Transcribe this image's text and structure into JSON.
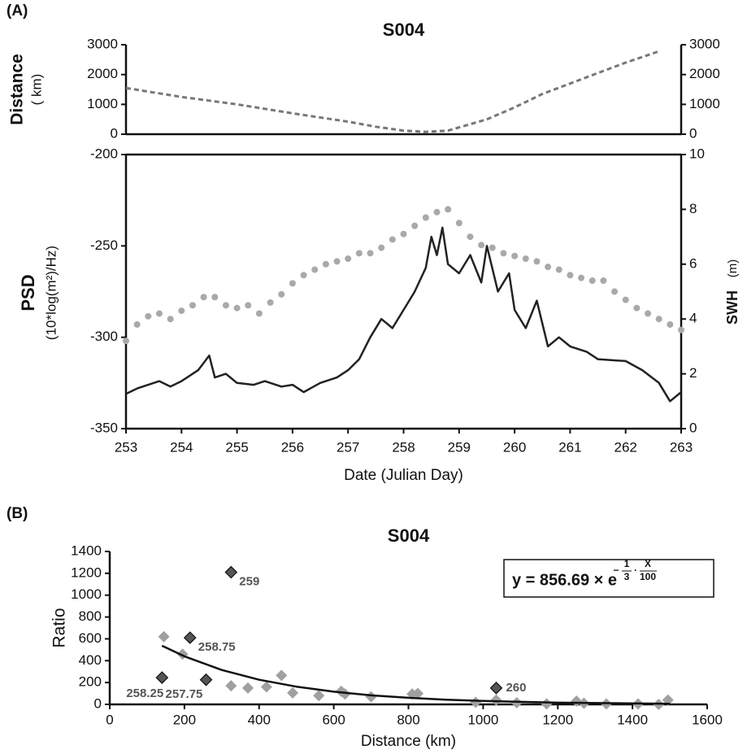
{
  "chart_data": [
    {
      "type": "line",
      "panel_label": "(A)",
      "title": "S004",
      "y_label": "Distance",
      "y_unit": "( km)",
      "xlim": [
        253,
        263
      ],
      "ylim": [
        0,
        3000
      ],
      "yticks": [
        0,
        1000,
        2000,
        3000
      ],
      "y2lim": [
        0,
        3000
      ],
      "y2ticks": [
        0,
        1000,
        2000,
        3000
      ],
      "series": [
        {
          "color": "#777777",
          "style": "dashed",
          "x": [
            253,
            254,
            255,
            256,
            257,
            257.5,
            258,
            258.4,
            258.8,
            259.5,
            260,
            260.5,
            261,
            261.5,
            262,
            262.6
          ],
          "values": [
            1550,
            1250,
            1000,
            700,
            420,
            250,
            120,
            80,
            120,
            500,
            900,
            1350,
            1700,
            2050,
            2400,
            2780
          ]
        }
      ]
    },
    {
      "type": "line",
      "y_label": "PSD",
      "y_unit": "(10*log(m²)/Hz)",
      "y2_label": "SWH",
      "y2_unit": "(m)",
      "x_label": "Date (Julian Day)",
      "xlim": [
        253,
        263
      ],
      "xticks": [
        253,
        254,
        255,
        256,
        257,
        258,
        259,
        260,
        261,
        262,
        263
      ],
      "ylim": [
        -350,
        -200
      ],
      "yticks": [
        -350,
        -300,
        -250,
        -200
      ],
      "y2lim": [
        0,
        10
      ],
      "y2ticks": [
        0,
        2,
        4,
        6,
        8,
        10
      ],
      "series": [
        {
          "color": "#a9a9a9",
          "style": "dots",
          "axis": "y2",
          "x": [
            253,
            253.2,
            253.4,
            253.6,
            253.8,
            254,
            254.2,
            254.4,
            254.6,
            254.8,
            255,
            255.2,
            255.4,
            255.6,
            255.8,
            256,
            256.2,
            256.4,
            256.6,
            256.8,
            257,
            257.2,
            257.4,
            257.6,
            257.8,
            258,
            258.2,
            258.4,
            258.6,
            258.8,
            259,
            259.2,
            259.4,
            259.6,
            259.8,
            260,
            260.2,
            260.4,
            260.6,
            260.8,
            261,
            261.2,
            261.4,
            261.6,
            261.8,
            262,
            262.2,
            262.4,
            262.6,
            262.8,
            263
          ],
          "values": [
            3.2,
            3.8,
            4.1,
            4.2,
            4.0,
            4.3,
            4.5,
            4.8,
            4.8,
            4.5,
            4.4,
            4.5,
            4.2,
            4.6,
            4.9,
            5.3,
            5.6,
            5.8,
            6.0,
            6.1,
            6.2,
            6.4,
            6.4,
            6.6,
            6.9,
            7.1,
            7.4,
            7.7,
            7.9,
            8.0,
            7.5,
            7.0,
            6.7,
            6.6,
            6.4,
            6.3,
            6.2,
            6.1,
            5.9,
            5.8,
            5.6,
            5.5,
            5.4,
            5.4,
            5.0,
            4.7,
            4.4,
            4.2,
            4.0,
            3.8,
            3.6
          ]
        },
        {
          "color": "#222222",
          "style": "line",
          "x": [
            253,
            253.2,
            253.4,
            253.6,
            253.8,
            254,
            254.2,
            254.3,
            254.5,
            254.6,
            254.8,
            255,
            255.3,
            255.5,
            255.8,
            256,
            256.2,
            256.5,
            256.8,
            257,
            257.2,
            257.4,
            257.6,
            257.8,
            258,
            258.2,
            258.4,
            258.5,
            258.6,
            258.7,
            258.8,
            259,
            259.2,
            259.4,
            259.5,
            259.7,
            259.9,
            260,
            260.2,
            260.4,
            260.6,
            260.8,
            261,
            261.3,
            261.5,
            262,
            262.3,
            262.6,
            262.8,
            263
          ],
          "values": [
            -331,
            -328,
            -326,
            -324,
            -327,
            -324,
            -320,
            -318,
            -310,
            -322,
            -320,
            -325,
            -326,
            -324,
            -327,
            -326,
            -330,
            -325,
            -322,
            -318,
            -312,
            -300,
            -290,
            -295,
            -285,
            -275,
            -262,
            -245,
            -255,
            -240,
            -260,
            -265,
            -255,
            -270,
            -250,
            -275,
            -265,
            -285,
            -295,
            -280,
            -305,
            -300,
            -305,
            -308,
            -312,
            -313,
            -318,
            -325,
            -335,
            -330
          ]
        }
      ]
    },
    {
      "type": "scatter",
      "panel_label": "(B)",
      "title": "S004",
      "x_label": "Distance (km)",
      "y_label": "Ratio",
      "xlim": [
        0,
        1600
      ],
      "xticks": [
        0,
        200,
        400,
        600,
        800,
        1000,
        1200,
        1400,
        1600
      ],
      "ylim": [
        0,
        1400
      ],
      "yticks": [
        0,
        200,
        400,
        600,
        800,
        1000,
        1200,
        1400
      ],
      "equation": {
        "base": "y = 856.69 × e",
        "sign": "−",
        "a_num": "1",
        "a_den": "3",
        "dot": "·",
        "b_num": "X",
        "b_den": "100"
      },
      "series": [
        {
          "color": "#a0a0a0",
          "style": "diamonds",
          "x": [
            145,
            195,
            325,
            370,
            420,
            460,
            490,
            560,
            620,
            630,
            700,
            810,
            825,
            980,
            1035,
            1090,
            1170,
            1250,
            1270,
            1330,
            1415,
            1470,
            1495
          ],
          "values": [
            620,
            460,
            170,
            150,
            160,
            265,
            105,
            80,
            120,
            95,
            70,
            95,
            100,
            20,
            40,
            15,
            5,
            30,
            10,
            5,
            5,
            0,
            40
          ]
        },
        {
          "color": "#555555",
          "style": "diamonds",
          "x": [
            325,
            215,
            140,
            258,
            1035
          ],
          "values": [
            1210,
            610,
            245,
            225,
            150
          ],
          "point_labels": [
            "259",
            "258.75",
            "258.25",
            "257.75",
            "260"
          ]
        },
        {
          "color": "#111111",
          "style": "line",
          "x": [
            140,
            200,
            300,
            400,
            500,
            600,
            700,
            800,
            900,
            1000,
            1200,
            1500
          ],
          "values": [
            537,
            440,
            315,
            226,
            162,
            116,
            83,
            60,
            43,
            31,
            16,
            6
          ]
        }
      ]
    }
  ]
}
